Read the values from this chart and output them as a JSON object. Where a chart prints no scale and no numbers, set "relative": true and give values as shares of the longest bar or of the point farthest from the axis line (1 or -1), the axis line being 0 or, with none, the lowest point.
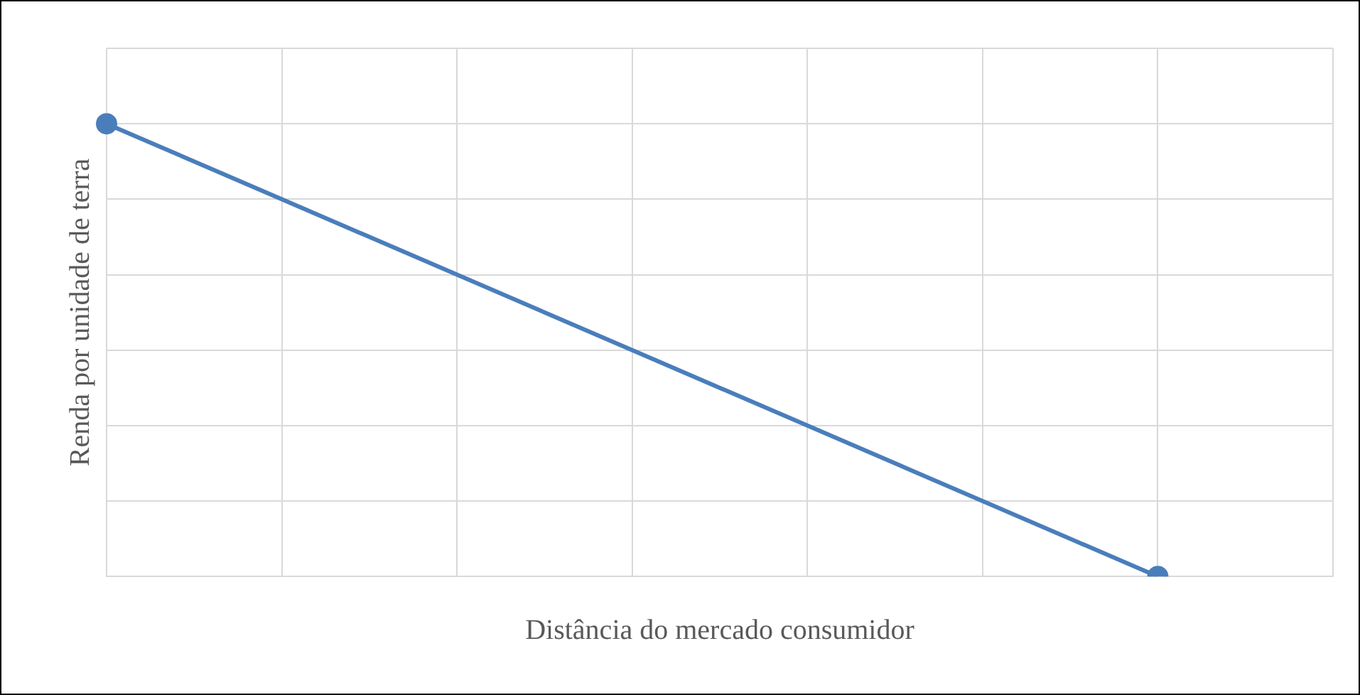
{
  "chart_data": {
    "type": "line",
    "relative": true,
    "xlabel": "Distância do mercado consumidor",
    "ylabel": "Renda por unidade de terra",
    "categories": [
      null,
      null,
      null,
      null,
      null,
      null,
      null,
      null
    ],
    "series": [
      {
        "color": "#4a7ebb",
        "values": [
          1,
          null,
          null,
          null,
          null,
          null,
          0,
          null
        ]
      }
    ],
    "grid": true,
    "legend": false,
    "marker": "circle",
    "line_style": "solid"
  }
}
